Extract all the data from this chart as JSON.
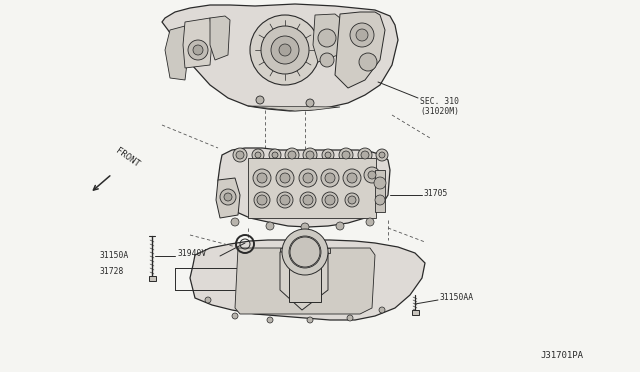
{
  "bg_color": "#f5f5f2",
  "fig_width": 6.4,
  "fig_height": 3.72,
  "dpi": 100,
  "labels": {
    "sec310": "SEC. 310\n(31020M)",
    "part31705": "31705",
    "part31150A": "31150A",
    "part31940V": "31940V",
    "part31728": "31728",
    "part31150AA": "31150AA",
    "front": "FRONT",
    "diagram_id": "J31701PA"
  },
  "lc": "#2a2a2a",
  "fc_light": "#e8e8e5",
  "fc_mid": "#d0d0cc",
  "fc_dark": "#b8b8b4"
}
